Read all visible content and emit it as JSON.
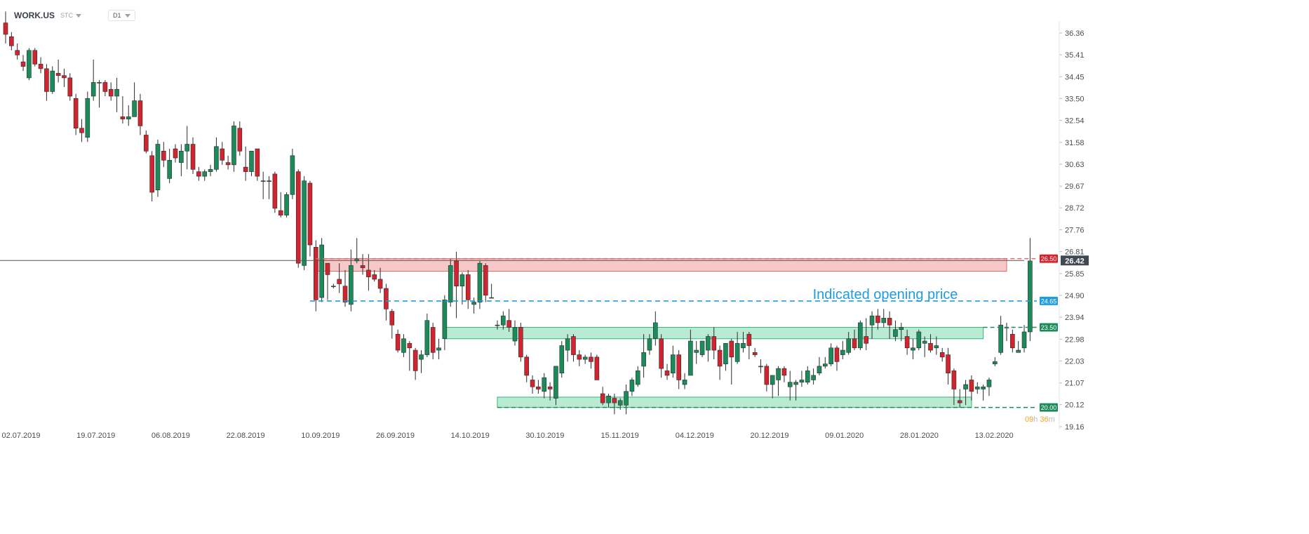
{
  "header": {
    "symbol": "WORK.US",
    "source": "STC",
    "timeframe": "D1"
  },
  "countdown": {
    "hours": "09",
    "h_unit": "h",
    "minutes": "36",
    "m_unit": "m"
  },
  "annotation": "Indicated opening price",
  "levels": {
    "resistance": "26.50",
    "current": "26.42",
    "indicated_open": "24.65",
    "support_mid": "23.50",
    "support_low": "20.00"
  },
  "colors": {
    "bull": "#1c8b5a",
    "bear": "#d1242f",
    "resistance_fill": "#f7c8c8",
    "support_fill": "#b9ebd3",
    "indicated": "#1f9be0",
    "current_label_bg": "#414a52"
  },
  "chart_data": {
    "type": "candlestick",
    "y_ticks": [
      "36.36",
      "35.41",
      "34.45",
      "33.50",
      "32.54",
      "31.58",
      "30.63",
      "29.67",
      "28.72",
      "27.76",
      "26.81",
      "25.85",
      "24.90",
      "23.94",
      "22.98",
      "22.03",
      "21.07",
      "20.12",
      "19.16"
    ],
    "ylim": [
      19.16,
      36.36
    ],
    "x_ticks": [
      "02.07.2019",
      "19.07.2019",
      "06.08.2019",
      "22.08.2019",
      "10.09.2019",
      "26.09.2019",
      "14.10.2019",
      "30.10.2019",
      "15.11.2019",
      "04.12.2019",
      "20.12.2019",
      "09.01.2020",
      "28.01.2020",
      "13.02.2020"
    ],
    "horizontal_levels": [
      26.5,
      24.65,
      23.5,
      20.0
    ],
    "candles": [
      [
        36.8,
        37.3,
        35.9,
        36.3
      ],
      [
        36.2,
        36.4,
        35.6,
        35.8
      ],
      [
        35.6,
        35.9,
        35.2,
        35.4
      ],
      [
        35.1,
        35.4,
        34.7,
        34.9
      ],
      [
        34.4,
        35.7,
        34.3,
        35.6
      ],
      [
        35.6,
        35.7,
        34.9,
        35.0
      ],
      [
        35.0,
        35.3,
        34.6,
        34.8
      ],
      [
        34.8,
        35.0,
        33.4,
        33.8
      ],
      [
        33.8,
        34.9,
        33.7,
        34.7
      ],
      [
        34.6,
        35.2,
        34.2,
        34.5
      ],
      [
        34.5,
        34.8,
        34.0,
        34.4
      ],
      [
        34.4,
        34.6,
        33.4,
        33.6
      ],
      [
        33.5,
        33.7,
        31.9,
        32.2
      ],
      [
        32.2,
        32.6,
        31.6,
        32.0
      ],
      [
        31.8,
        33.8,
        31.6,
        33.5
      ],
      [
        33.6,
        35.2,
        33.4,
        34.2
      ],
      [
        34.2,
        34.3,
        33.1,
        34.2
      ],
      [
        34.2,
        34.3,
        33.6,
        33.8
      ],
      [
        33.9,
        34.2,
        33.4,
        33.6
      ],
      [
        33.6,
        34.4,
        32.9,
        33.9
      ],
      [
        32.7,
        33.6,
        32.4,
        32.6
      ],
      [
        32.6,
        33.2,
        32.3,
        32.7
      ],
      [
        32.7,
        34.2,
        32.7,
        33.4
      ],
      [
        33.4,
        33.7,
        31.9,
        32.3
      ],
      [
        31.9,
        32.1,
        31.1,
        31.2
      ],
      [
        31.0,
        31.2,
        29.0,
        29.4
      ],
      [
        29.5,
        31.7,
        29.2,
        31.5
      ],
      [
        31.2,
        31.6,
        30.5,
        30.8
      ],
      [
        30.0,
        31.3,
        29.8,
        30.8
      ],
      [
        31.3,
        31.5,
        30.7,
        30.9
      ],
      [
        30.7,
        31.5,
        30.1,
        31.2
      ],
      [
        31.2,
        32.3,
        30.4,
        31.5
      ],
      [
        31.5,
        31.8,
        30.2,
        30.4
      ],
      [
        30.3,
        30.5,
        29.9,
        30.1
      ],
      [
        30.1,
        30.4,
        29.9,
        30.3
      ],
      [
        30.3,
        30.6,
        30.1,
        30.4
      ],
      [
        30.4,
        31.8,
        30.3,
        31.4
      ],
      [
        31.3,
        31.6,
        30.6,
        30.8
      ],
      [
        30.7,
        31.0,
        30.4,
        30.6
      ],
      [
        30.6,
        32.5,
        30.3,
        32.3
      ],
      [
        32.2,
        32.5,
        31.0,
        31.2
      ],
      [
        30.5,
        31.4,
        29.9,
        30.3
      ],
      [
        30.3,
        31.2,
        30.1,
        31.2
      ],
      [
        31.3,
        31.3,
        29.9,
        30.1
      ],
      [
        29.9,
        30.3,
        29.1,
        29.9
      ],
      [
        29.9,
        30.1,
        29.1,
        29.9
      ],
      [
        30.2,
        30.3,
        28.5,
        28.7
      ],
      [
        28.6,
        29.4,
        28.3,
        28.4
      ],
      [
        28.4,
        29.4,
        28.3,
        29.3
      ],
      [
        29.3,
        31.3,
        29.1,
        31.0
      ],
      [
        30.3,
        30.4,
        26.1,
        26.3
      ],
      [
        26.2,
        30.1,
        26.0,
        29.9
      ],
      [
        29.8,
        29.9,
        26.6,
        27.1
      ],
      [
        27.0,
        27.3,
        24.2,
        24.7
      ],
      [
        24.8,
        27.4,
        24.6,
        27.1
      ],
      [
        26.3,
        26.3,
        24.7,
        25.8
      ],
      [
        25.3,
        25.4,
        25.2,
        25.3
      ],
      [
        25.6,
        26.3,
        25.0,
        25.4
      ],
      [
        25.3,
        26.0,
        24.4,
        24.6
      ],
      [
        24.5,
        26.9,
        24.2,
        26.2
      ],
      [
        26.4,
        27.4,
        26.3,
        26.5
      ],
      [
        26.2,
        26.7,
        25.8,
        26.1
      ],
      [
        26.0,
        26.7,
        25.1,
        25.7
      ],
      [
        25.8,
        26.0,
        25.5,
        25.6
      ],
      [
        25.6,
        26.1,
        25.0,
        25.2
      ],
      [
        25.2,
        25.4,
        23.8,
        24.3
      ],
      [
        24.2,
        24.3,
        23.0,
        23.6
      ],
      [
        23.2,
        23.4,
        22.4,
        22.5
      ],
      [
        22.4,
        23.2,
        22.2,
        23.0
      ],
      [
        22.8,
        22.9,
        21.6,
        22.6
      ],
      [
        22.5,
        22.6,
        21.2,
        21.6
      ],
      [
        22.1,
        22.5,
        21.5,
        22.3
      ],
      [
        22.3,
        24.1,
        22.2,
        23.8
      ],
      [
        23.5,
        23.7,
        22.1,
        22.4
      ],
      [
        22.5,
        23.0,
        22.1,
        22.6
      ],
      [
        23.0,
        24.9,
        22.5,
        24.7
      ],
      [
        24.6,
        26.5,
        24.4,
        26.2
      ],
      [
        26.4,
        26.8,
        23.9,
        25.3
      ],
      [
        25.3,
        25.9,
        24.5,
        25.8
      ],
      [
        25.8,
        26.0,
        24.3,
        24.7
      ],
      [
        24.5,
        24.8,
        24.1,
        24.6
      ],
      [
        24.6,
        26.4,
        24.3,
        26.3
      ],
      [
        26.2,
        26.3,
        24.6,
        24.9
      ],
      [
        24.8,
        25.4,
        24.8,
        24.8
      ],
      [
        23.6,
        23.8,
        23.4,
        23.6
      ],
      [
        23.6,
        24.2,
        23.4,
        24.0
      ],
      [
        23.8,
        24.3,
        23.3,
        23.5
      ],
      [
        22.9,
        23.8,
        22.7,
        23.5
      ],
      [
        23.5,
        23.7,
        22.0,
        22.2
      ],
      [
        22.2,
        22.3,
        21.1,
        21.4
      ],
      [
        21.2,
        21.4,
        20.6,
        20.9
      ],
      [
        20.9,
        21.2,
        20.6,
        20.8
      ],
      [
        20.7,
        21.5,
        20.4,
        21.3
      ],
      [
        20.9,
        21.1,
        20.3,
        20.8
      ],
      [
        20.4,
        21.8,
        20.1,
        21.8
      ],
      [
        21.5,
        22.9,
        21.3,
        22.7
      ],
      [
        22.5,
        23.2,
        22.0,
        23.0
      ],
      [
        23.1,
        23.2,
        22.0,
        22.3
      ],
      [
        22.3,
        22.5,
        21.8,
        22.1
      ],
      [
        22.1,
        22.3,
        21.9,
        22.2
      ],
      [
        22.2,
        22.4,
        21.7,
        22.0
      ],
      [
        22.2,
        22.3,
        21.2,
        21.2
      ],
      [
        20.6,
        20.9,
        20.1,
        20.2
      ],
      [
        20.2,
        20.6,
        20.0,
        20.5
      ],
      [
        20.4,
        20.6,
        19.7,
        20.2
      ],
      [
        20.1,
        20.4,
        19.9,
        20.3
      ],
      [
        20.1,
        21.0,
        19.7,
        20.7
      ],
      [
        20.7,
        21.3,
        20.5,
        21.2
      ],
      [
        21.0,
        21.8,
        20.9,
        21.6
      ],
      [
        21.8,
        23.2,
        21.3,
        22.4
      ],
      [
        22.5,
        23.2,
        22.3,
        23.0
      ],
      [
        23.0,
        24.2,
        22.7,
        23.7
      ],
      [
        23.0,
        23.2,
        21.3,
        21.7
      ],
      [
        21.6,
        21.9,
        21.2,
        21.4
      ],
      [
        21.5,
        22.7,
        21.3,
        22.3
      ],
      [
        22.3,
        22.5,
        20.8,
        21.2
      ],
      [
        21.0,
        21.5,
        20.8,
        21.2
      ],
      [
        21.4,
        23.4,
        21.4,
        22.9
      ],
      [
        22.4,
        22.9,
        21.9,
        22.5
      ],
      [
        22.3,
        22.9,
        22.2,
        22.9
      ],
      [
        22.5,
        23.2,
        22.0,
        23.1
      ],
      [
        23.1,
        23.5,
        22.1,
        22.5
      ],
      [
        22.5,
        22.7,
        21.2,
        21.8
      ],
      [
        21.9,
        22.8,
        21.6,
        22.8
      ],
      [
        22.9,
        23.0,
        21.0,
        22.2
      ],
      [
        22.0,
        23.3,
        21.9,
        22.8
      ],
      [
        22.6,
        23.3,
        22.4,
        22.8
      ],
      [
        23.2,
        23.3,
        22.1,
        22.7
      ],
      [
        22.4,
        22.6,
        22.2,
        22.3
      ],
      [
        21.8,
        22.1,
        21.5,
        21.8
      ],
      [
        21.8,
        21.9,
        20.7,
        21.0
      ],
      [
        21.0,
        21.4,
        20.4,
        21.4
      ],
      [
        21.2,
        21.8,
        20.5,
        21.7
      ],
      [
        21.7,
        21.8,
        21.1,
        21.4
      ],
      [
        20.9,
        21.6,
        20.3,
        21.1
      ],
      [
        21.0,
        21.2,
        20.3,
        21.1
      ],
      [
        21.1,
        21.6,
        20.9,
        21.2
      ],
      [
        21.1,
        21.8,
        21.0,
        21.6
      ],
      [
        21.2,
        21.7,
        21.0,
        21.4
      ],
      [
        21.5,
        22.2,
        21.4,
        21.8
      ],
      [
        21.8,
        22.2,
        21.7,
        21.9
      ],
      [
        21.9,
        22.8,
        21.8,
        22.6
      ],
      [
        22.6,
        22.7,
        21.6,
        22.0
      ],
      [
        22.3,
        22.9,
        22.1,
        22.5
      ],
      [
        22.4,
        23.3,
        22.3,
        23.0
      ],
      [
        23.0,
        23.4,
        22.5,
        22.6
      ],
      [
        22.6,
        23.8,
        22.5,
        23.7
      ],
      [
        23.1,
        23.9,
        22.5,
        22.8
      ],
      [
        23.6,
        24.2,
        23.0,
        24.0
      ],
      [
        24.0,
        24.3,
        23.4,
        23.7
      ],
      [
        23.7,
        24.3,
        23.5,
        23.9
      ],
      [
        23.9,
        24.2,
        23.0,
        23.6
      ],
      [
        23.1,
        23.8,
        22.9,
        23.4
      ],
      [
        23.4,
        23.7,
        22.9,
        23.5
      ],
      [
        23.1,
        23.4,
        22.3,
        22.6
      ],
      [
        22.5,
        23.0,
        22.1,
        22.6
      ],
      [
        22.6,
        23.4,
        22.5,
        23.3
      ],
      [
        22.8,
        23.1,
        22.2,
        22.9
      ],
      [
        22.8,
        23.2,
        22.4,
        22.5
      ],
      [
        22.6,
        23.1,
        22.3,
        22.7
      ],
      [
        22.4,
        22.6,
        22.0,
        22.2
      ],
      [
        22.3,
        22.6,
        21.0,
        21.5
      ],
      [
        21.6,
        21.7,
        20.1,
        20.8
      ],
      [
        20.3,
        20.8,
        20.0,
        20.2
      ],
      [
        20.8,
        21.2,
        20.1,
        21.0
      ],
      [
        21.2,
        21.4,
        20.3,
        20.7
      ],
      [
        20.8,
        21.1,
        20.6,
        20.9
      ],
      [
        20.8,
        21.0,
        20.3,
        20.9
      ],
      [
        20.9,
        21.3,
        20.5,
        21.2
      ],
      [
        21.9,
        22.2,
        21.8,
        22.0
      ],
      [
        22.4,
        24.0,
        22.3,
        23.6
      ],
      [
        23.5,
        23.7,
        22.9,
        23.5
      ],
      [
        23.2,
        23.4,
        22.4,
        22.6
      ],
      [
        22.4,
        22.9,
        22.5,
        22.5
      ],
      [
        22.6,
        23.6,
        22.4,
        23.3
      ],
      [
        23.3,
        27.4,
        22.9,
        26.4
      ]
    ]
  }
}
